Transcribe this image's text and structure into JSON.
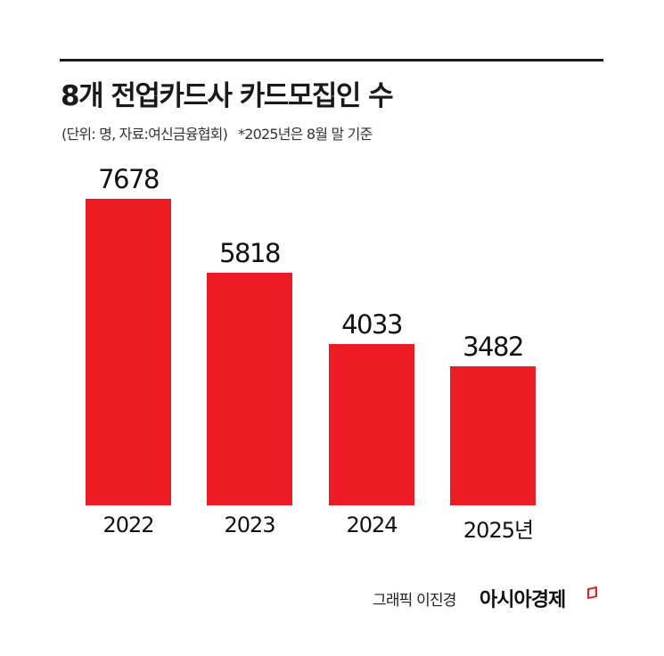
{
  "header": {
    "title": "8개 전업카드사 카드모집인 수",
    "unit_source": "(단위: 명, 자료:여신금융협회)",
    "note": "*2025년은 8월 말 기준"
  },
  "footer": {
    "credit": "그래픽 이진경",
    "brand": "아시아경제"
  },
  "colors": {
    "bar": "#ed1c24",
    "text": "#111111",
    "rule": "#1a1a1a"
  },
  "chart_data": {
    "type": "bar",
    "title": "8개 전업카드사 카드모집인 수",
    "subtitle": "(단위: 명, 자료:여신금융협회) *2025년은 8월 말 기준",
    "categories": [
      "2022",
      "2023",
      "2024",
      "2025년"
    ],
    "values": [
      7678,
      5818,
      4033,
      3482
    ],
    "value_labels": [
      "7678",
      "5818",
      "4033",
      "3482"
    ],
    "xlabel": "",
    "ylabel": "명",
    "grid": false,
    "legend": "none",
    "data_labels": true
  }
}
